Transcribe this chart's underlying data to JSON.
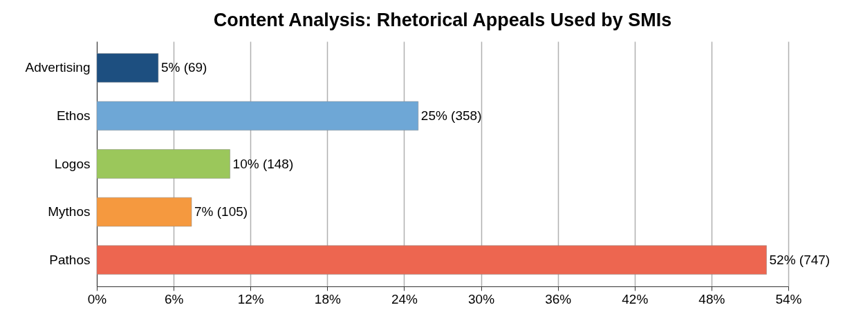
{
  "chart_data": {
    "type": "bar",
    "orientation": "horizontal",
    "title": "Content Analysis: Rhetorical Appeals Used by SMIs",
    "categories": [
      "Advertising",
      "Ethos",
      "Logos",
      "Mythos",
      "Pathos"
    ],
    "values": [
      4.8,
      25.1,
      10.4,
      7.4,
      52.3
    ],
    "colors": [
      "#1d4f80",
      "#6ea7d6",
      "#9bc75b",
      "#f5993f",
      "#ed6650"
    ],
    "value_labels": [
      "5% (69)",
      "25% (358)",
      "10% (148)",
      "7% (105)",
      "52% (747)"
    ],
    "xlim": [
      0,
      54
    ],
    "xticks": [
      {
        "value": 0,
        "label": "0%"
      },
      {
        "value": 6,
        "label": "6%"
      },
      {
        "value": 12,
        "label": "12%"
      },
      {
        "value": 18,
        "label": "18%"
      },
      {
        "value": 24,
        "label": "24%"
      },
      {
        "value": 30,
        "label": "30%"
      },
      {
        "value": 36,
        "label": "36%"
      },
      {
        "value": 42,
        "label": "42%"
      },
      {
        "value": 48,
        "label": "48%"
      },
      {
        "value": 54,
        "label": "54%"
      }
    ],
    "grid": "x"
  }
}
